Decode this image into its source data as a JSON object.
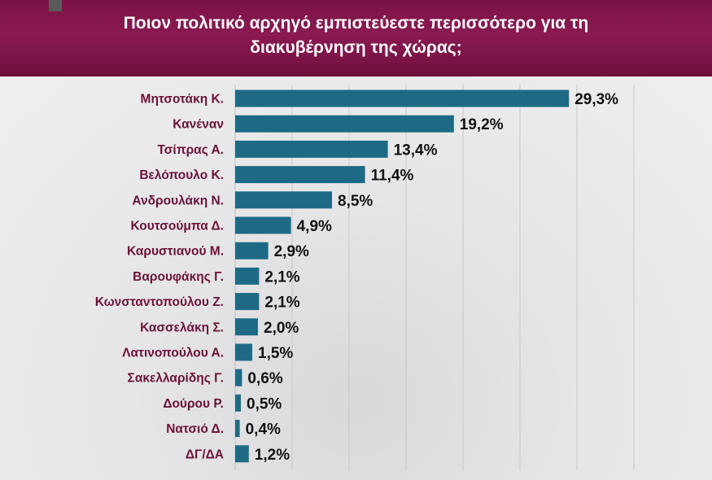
{
  "header": {
    "title_line1": "Ποιον πολιτικό αρχηγό εμπιστεύεστε περισσότερο για τη",
    "title_line2": "διακυβέρνηση της χώρας;"
  },
  "colors": {
    "header": "#7a1244",
    "bar": "#1e6a84",
    "category_label": "#6b1238",
    "value_label": "#111111"
  },
  "chart_data": {
    "type": "bar",
    "orientation": "horizontal",
    "title": "Ποιον πολιτικό αρχηγό εμπιστεύεστε περισσότερο για τη διακυβέρνηση της χώρας;",
    "categories": [
      "Μητσοτάκη Κ.",
      "Κανέναν",
      "Τσίπρας Α.",
      "Βελόπουλο Κ.",
      "Ανδρουλάκη Ν.",
      "Κουτσούμπα Δ.",
      "Καρυστιανού Μ.",
      "Βαρουφάκης Γ.",
      "Κωνσταντοπούλου Ζ.",
      "Κασσελάκη Σ.",
      "Λατινοπούλου Α.",
      "Σακελλαρίδης Γ.",
      "Δούρου Ρ.",
      "Νατσιό Δ.",
      "ΔΓ/ΔΑ"
    ],
    "values": [
      29.3,
      19.2,
      13.4,
      11.4,
      8.5,
      4.9,
      2.9,
      2.1,
      2.1,
      2.0,
      1.5,
      0.6,
      0.5,
      0.4,
      1.2
    ],
    "value_labels": [
      "29,3%",
      "19,2%",
      "13,4%",
      "11,4%",
      "8,5%",
      "4,9%",
      "2,9%",
      "2,1%",
      "2,1%",
      "2,0%",
      "1,5%",
      "0,6%",
      "0,5%",
      "0,4%",
      "1,2%"
    ],
    "xlabel": "",
    "ylabel": "",
    "xlim": [
      0,
      35
    ],
    "grid": true,
    "legend": "none"
  }
}
